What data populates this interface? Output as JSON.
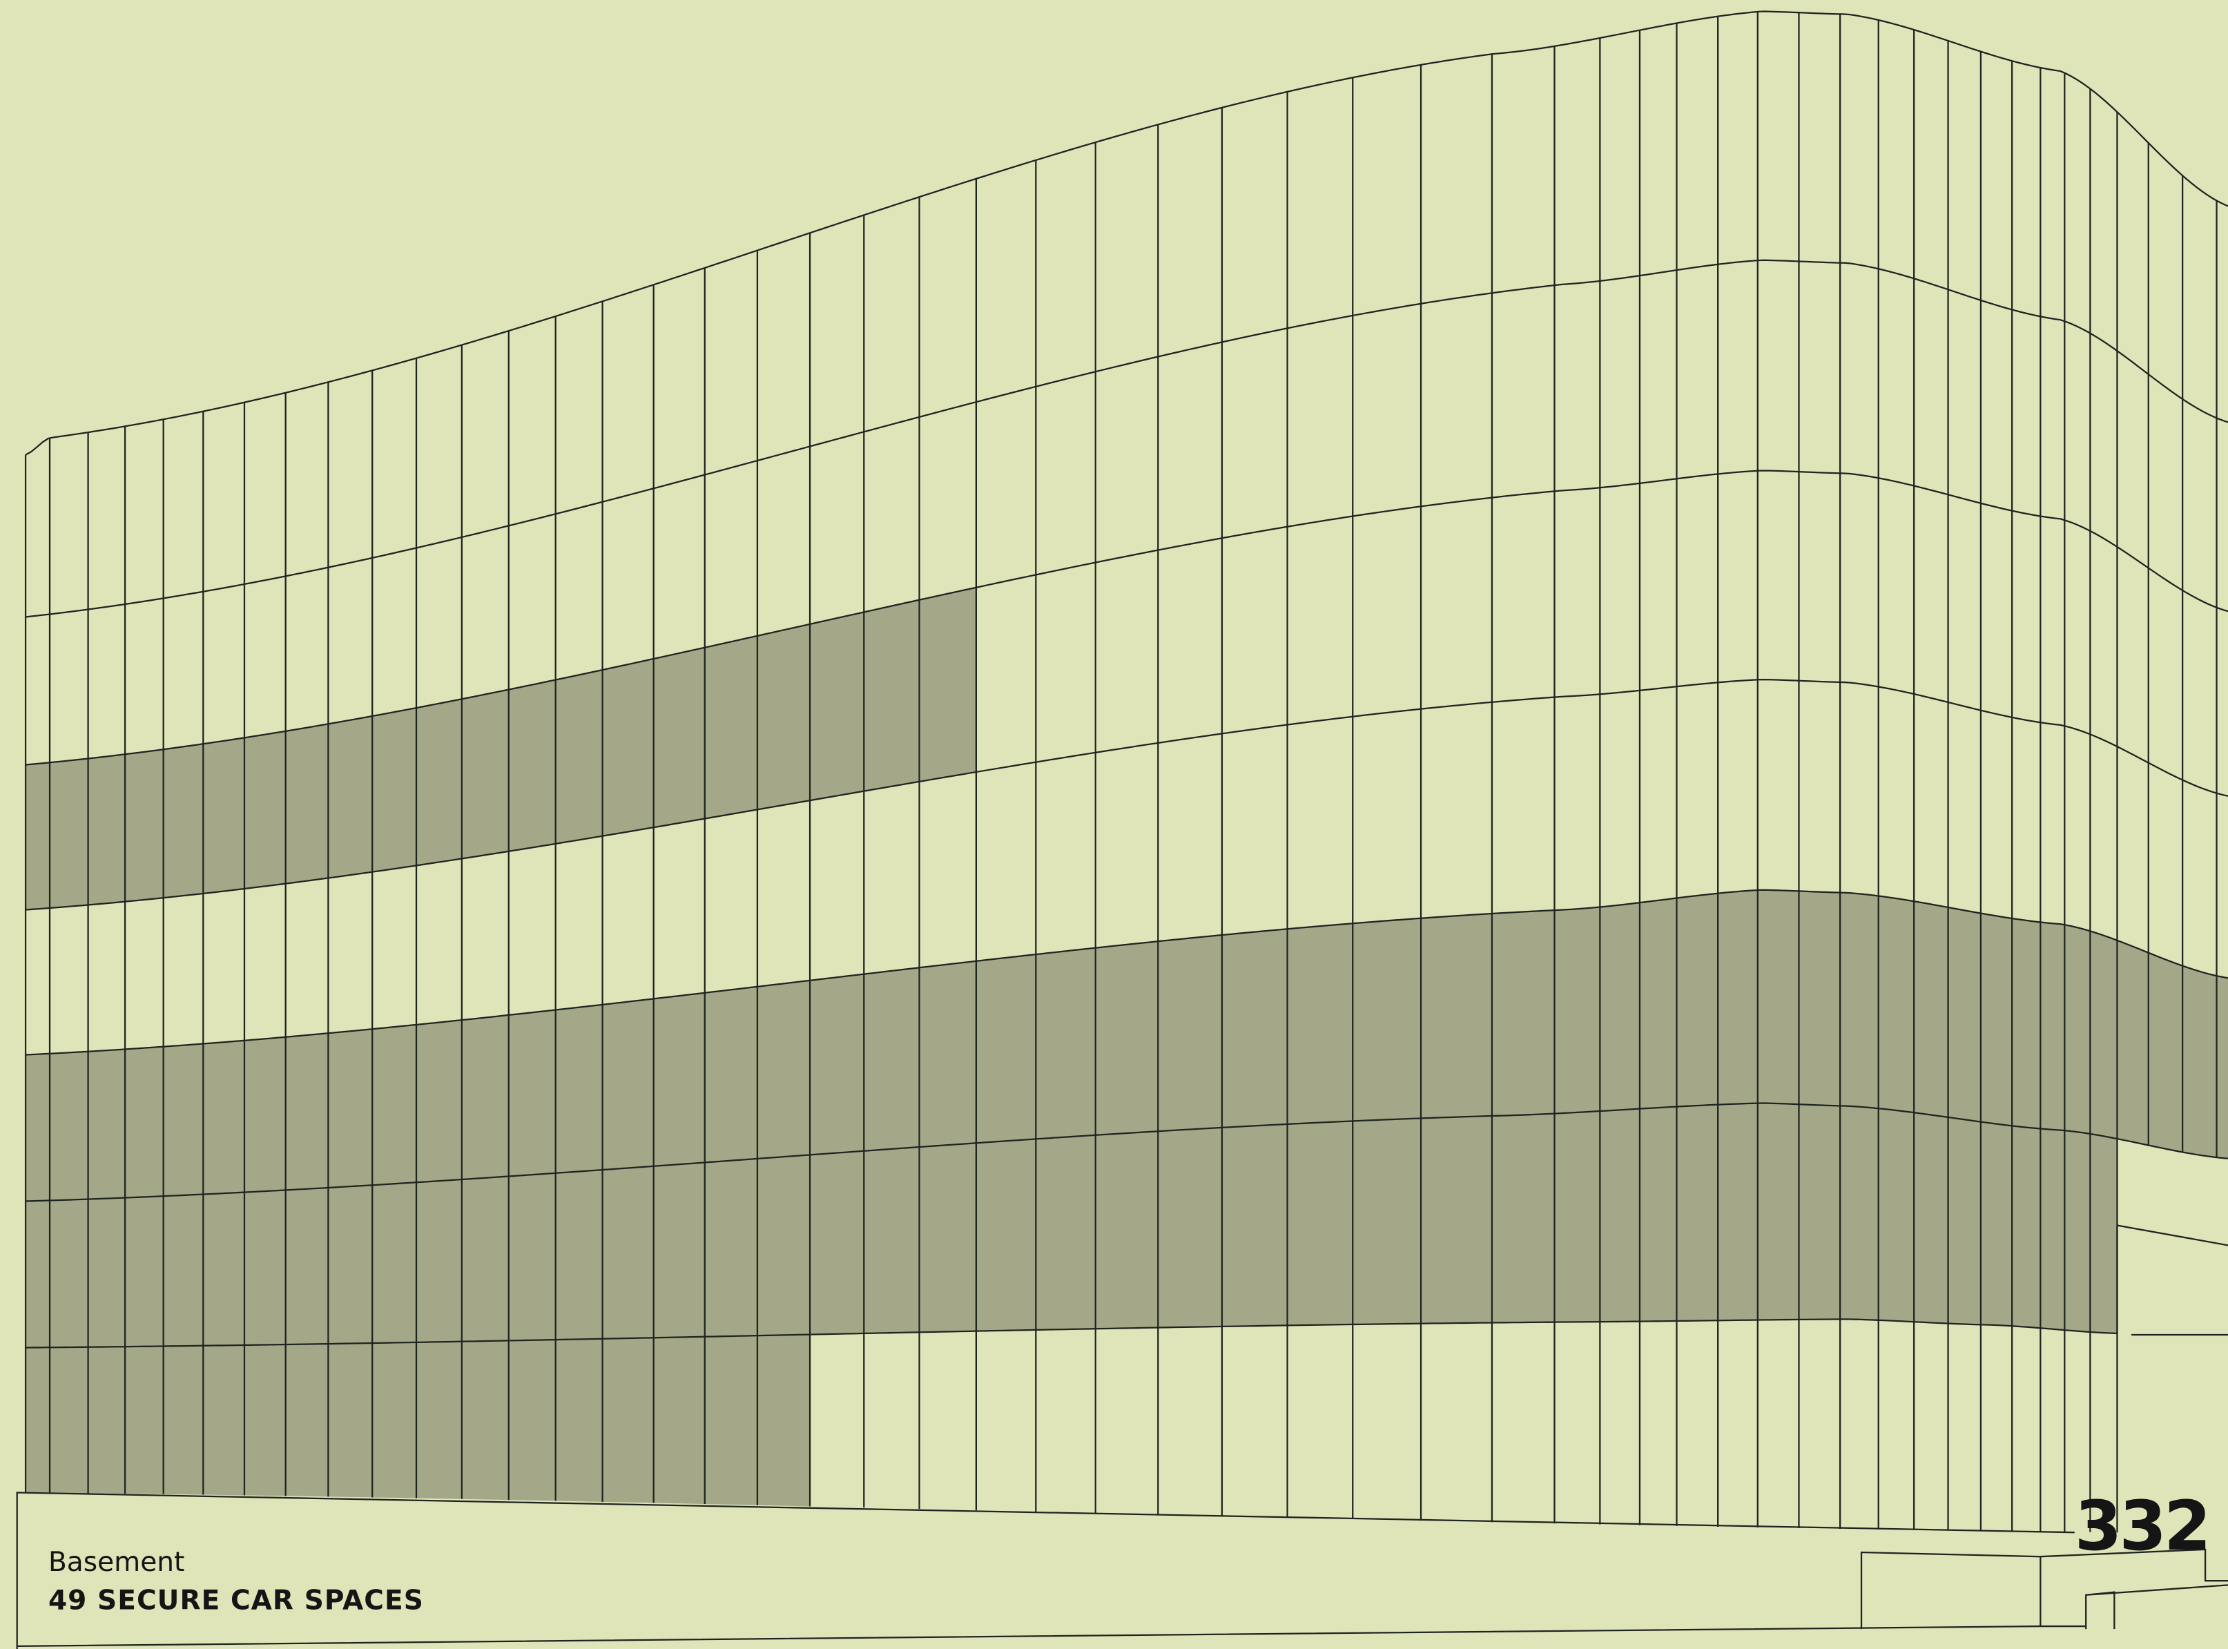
{
  "caption": {
    "level": "Basement",
    "detail": "49 SECURE CAR SPACES"
  },
  "building_number": "332"
}
